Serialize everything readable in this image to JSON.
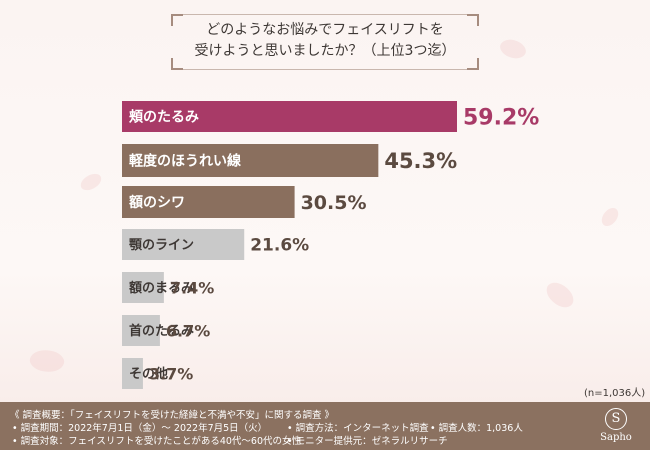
{
  "title": {
    "line1": "どのようなお悩みでフェイスリフトを",
    "line2": "受けようと思いましたか？（上位3つ迄）"
  },
  "note": "(n=1,036人)",
  "colors": {
    "top": "#a83a67",
    "mid": "#8a6f5e",
    "low": "#c9c9c9"
  },
  "chart_data": {
    "type": "bar",
    "orientation": "horizontal",
    "categories": [
      "頬のたるみ",
      "軽度のほうれい線",
      "額のシワ",
      "顎のライン",
      "額のまるみ",
      "首のたるみ",
      "その他"
    ],
    "values": [
      59.2,
      45.3,
      30.5,
      21.6,
      7.4,
      6.7,
      3.7
    ],
    "value_labels": [
      "59.2%",
      "45.3%",
      "30.5%",
      "21.6%",
      "7.4%",
      "6.7%",
      "3.7%"
    ],
    "unit": "%",
    "xlim": [
      0,
      100
    ],
    "grid": false,
    "legend": "none"
  },
  "footer": {
    "overview": "《 調査概要：「フェイスリフトを受けた経緯と不満や不安」に関する調査 》",
    "period": "• 調査期間：2022年7月1日（金）～ 2022年7月5日（火）",
    "method": "• 調査方法：インターネット調査",
    "count": "• 調査人数：1,036人",
    "target": "• 調査対象：フェイスリフトを受けたことがある40代～60代の女性",
    "provider": "• モニター提供元：ゼネラルリサーチ",
    "logo_mark": "S",
    "logo_text": "Sapho"
  }
}
